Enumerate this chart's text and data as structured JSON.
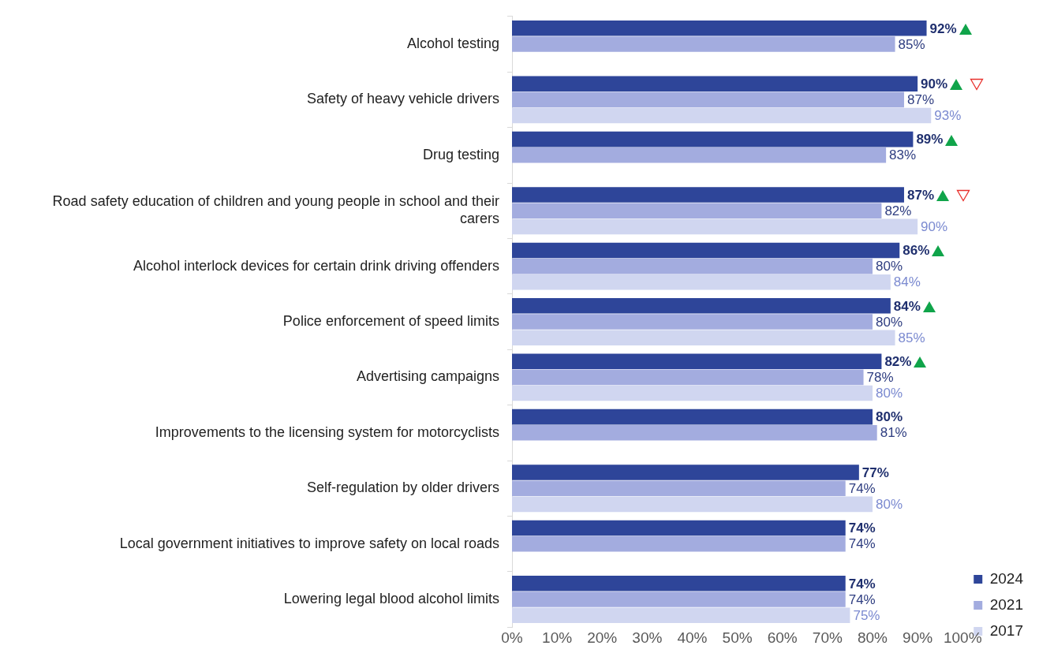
{
  "chart_data": {
    "type": "bar",
    "orientation": "horizontal",
    "categories": [
      "Alcohol testing",
      "Safety of heavy vehicle drivers",
      "Drug testing",
      "Road safety education of children and young people in school and their carers",
      "Alcohol interlock devices for certain drink driving offenders",
      "Police enforcement of speed limits",
      "Advertising campaigns",
      "Improvements to the licensing system for motorcyclists",
      "Self-regulation by older drivers",
      "Local government initiatives to improve safety on local roads",
      "Lowering legal blood alcohol limits"
    ],
    "series": [
      {
        "name": "2024",
        "color": "#2e4599",
        "values": [
          92,
          90,
          89,
          87,
          86,
          84,
          82,
          80,
          77,
          74,
          74
        ],
        "value_labels": [
          "92%",
          "90%",
          "89%",
          "87%",
          "86%",
          "84%",
          "82%",
          "80%",
          "77%",
          "74%",
          "74%"
        ]
      },
      {
        "name": "2021",
        "color": "#a3acdf",
        "values": [
          85,
          87,
          83,
          82,
          80,
          80,
          78,
          81,
          74,
          74,
          74
        ],
        "value_labels": [
          "85%",
          "87%",
          "83%",
          "82%",
          "80%",
          "80%",
          "78%",
          "81%",
          "74%",
          "74%",
          "74%"
        ]
      },
      {
        "name": "2017",
        "color": "#d0d6f0",
        "values": [
          null,
          93,
          null,
          90,
          84,
          85,
          80,
          null,
          80,
          null,
          75
        ],
        "value_labels": [
          null,
          "93%",
          null,
          "90%",
          "84%",
          "85%",
          "80%",
          null,
          "80%",
          null,
          "75%"
        ]
      }
    ],
    "xlim": [
      0,
      100
    ],
    "xticks": [
      {
        "value": 0,
        "label": "0%"
      },
      {
        "value": 10,
        "label": "10%"
      },
      {
        "value": 20,
        "label": "20%"
      },
      {
        "value": 30,
        "label": "30%"
      },
      {
        "value": 40,
        "label": "40%"
      },
      {
        "value": 50,
        "label": "50%"
      },
      {
        "value": 60,
        "label": "60%"
      },
      {
        "value": 70,
        "label": "70%"
      },
      {
        "value": 80,
        "label": "80%"
      },
      {
        "value": 90,
        "label": "90%"
      },
      {
        "value": 100,
        "label": "100%"
      }
    ],
    "grid": false,
    "legend": "bottom right"
  }
}
